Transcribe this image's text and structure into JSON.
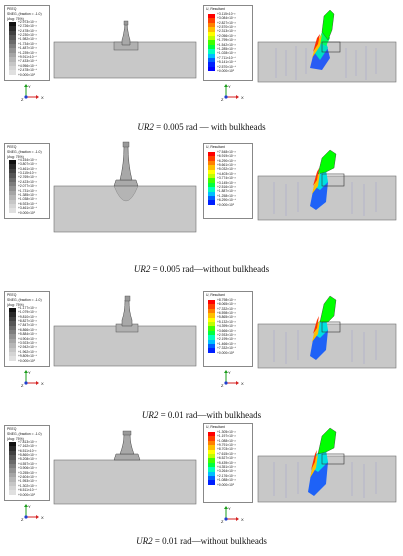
{
  "figure": {
    "rows": [
      {
        "caption_var": "UR2",
        "caption_rest": " = 0.005 rad — with bulkheads",
        "peeq_legend": {
          "title": "PEEQ",
          "subtitle": "SNEG, (fraction = -1.0)",
          "avg": "(Avg: 75%)",
          "values": [
            "+2.973×10⁻³",
            "+2.726×10⁻³",
            "+2.478×10⁻³",
            "+2.230×10⁻³",
            "+1.982×10⁻³",
            "+1.734×10⁻³",
            "+1.487×10⁻³",
            "+1.239×10⁻³",
            "+9.911×10⁻⁴",
            "+7.433×10⁻⁴",
            "+4.956×10⁻⁴",
            "+2.478×10⁻⁴",
            "+0.000×10⁰"
          ]
        },
        "u_legend": {
          "title": "U, Resultant",
          "values": [
            "+3.115×10⁻³",
            "+3.084×10⁻³",
            "+2.827×10⁻³",
            "+2.570×10⁻³",
            "+2.313×10⁻³",
            "+2.056×10⁻³",
            "+1.799×10⁻³",
            "+1.542×10⁻³",
            "+1.285×10⁻³",
            "+1.028×10⁻³",
            "+7.711×10⁻⁴",
            "+5.141×10⁻⁴",
            "+2.570×10⁻⁴",
            "+0.000×10⁰"
          ]
        }
      },
      {
        "caption_var": "UR2",
        "caption_rest": " = 0.005 rad—without bulkheads",
        "peeq_legend": {
          "title": "PEEQ",
          "subtitle": "SNEG, (fraction = -1.0)",
          "avg": "(Avg: 75%)",
          "values": [
            "+4.154×10⁻³",
            "+3.807×10⁻³",
            "+3.461×10⁻³",
            "+3.115×10⁻³",
            "+2.769×10⁻³",
            "+2.423×10⁻³",
            "+2.077×10⁻³",
            "+1.731×10⁻³",
            "+1.385×10⁻³",
            "+1.038×10⁻³",
            "+6.923×10⁻⁴",
            "+3.461×10⁻⁴",
            "+0.000×10⁰"
          ]
        },
        "u_legend": {
          "title": "U, Resultant",
          "values": [
            "+7.548×10⁻³",
            "+6.919×10⁻³",
            "+6.290×10⁻³",
            "+5.661×10⁻³",
            "+5.032×10⁻³",
            "+4.403×10⁻³",
            "+3.774×10⁻³",
            "+3.145×10⁻³",
            "+2.516×10⁻³",
            "+1.887×10⁻³",
            "+1.258×10⁻³",
            "+6.290×10⁻⁴",
            "+0.000×10⁰"
          ]
        }
      },
      {
        "caption_var": "UR2",
        "caption_rest": " = 0.01 rad—with bulkheads",
        "peeq_legend": {
          "title": "PEEQ",
          "subtitle": "SNEG, (fraction = -1.0)",
          "avg": "(Avg: 75%)",
          "values": [
            "+1.177×10⁻²",
            "+1.079×10⁻²",
            "+9.810×10⁻³",
            "+8.827×10⁻³",
            "+7.847×10⁻³",
            "+6.866×10⁻³",
            "+5.884×10⁻³",
            "+4.904×10⁻³",
            "+3.923×10⁻³",
            "+2.942×10⁻³",
            "+1.962×10⁻³",
            "+9.809×10⁻⁴",
            "+0.000×10⁰"
          ]
        },
        "u_legend": {
          "title": "U, Resultant",
          "values": [
            "+8.798×10⁻³",
            "+8.065×10⁻³",
            "+7.332×10⁻³",
            "+6.598×10⁻³",
            "+5.865×10⁻³",
            "+5.132×10⁻³",
            "+4.399×10⁻³",
            "+3.666×10⁻³",
            "+2.933×10⁻³",
            "+2.199×10⁻³",
            "+1.466×10⁻³",
            "+7.332×10⁻⁴",
            "+0.000×10⁰"
          ]
        }
      },
      {
        "caption_var": "UR2",
        "caption_rest": " = 0.01 rad—without bulkheads",
        "peeq_legend": {
          "title": "PEEQ",
          "subtitle": "SNEG, (fraction = -1.0)",
          "avg": "(Avg: 75%)",
          "values": [
            "+7.813×10⁻³",
            "+7.162×10⁻³",
            "+6.511×10⁻³",
            "+5.860×10⁻³",
            "+5.208×10⁻³",
            "+4.557×10⁻³",
            "+3.906×10⁻³",
            "+3.255×10⁻³",
            "+2.604×10⁻³",
            "+1.953×10⁻³",
            "+1.302×10⁻³",
            "+6.511×10⁻⁴",
            "+0.000×10⁰"
          ]
        },
        "u_legend": {
          "title": "U, Resultant",
          "values": [
            "+1.305×10⁻²",
            "+1.197×10⁻²",
            "+1.088×10⁻²",
            "+9.791×10⁻³",
            "+8.703×10⁻³",
            "+7.615×10⁻³",
            "+6.527×10⁻³",
            "+5.439×10⁻³",
            "+4.351×10⁻³",
            "+3.264×10⁻³",
            "+2.176×10⁻³",
            "+1.088×10⁻³",
            "+0.000×10⁰"
          ]
        }
      }
    ],
    "axis_labels": {
      "y": "Y",
      "x": "X",
      "z": "Z"
    }
  },
  "colors": {
    "grey_ramp": [
      "#111111",
      "#2a2a2a",
      "#404040",
      "#555555",
      "#6a6a6a",
      "#7e7e7e",
      "#929292",
      "#a5a5a5",
      "#b6b6b6",
      "#c6c6c6",
      "#d4d4d4",
      "#e0e0e0",
      "#ececec"
    ],
    "rainbow_ramp": [
      "#ff0000",
      "#ff4000",
      "#ff8000",
      "#ffbf00",
      "#ffff00",
      "#bfff00",
      "#40ff00",
      "#00ff40",
      "#00ffbf",
      "#00bfff",
      "#0060ff",
      "#0020ff",
      "#0000ff",
      "#0000c0"
    ],
    "model_grey": "#c8c8c8",
    "model_edge": "#6e6e6e"
  }
}
